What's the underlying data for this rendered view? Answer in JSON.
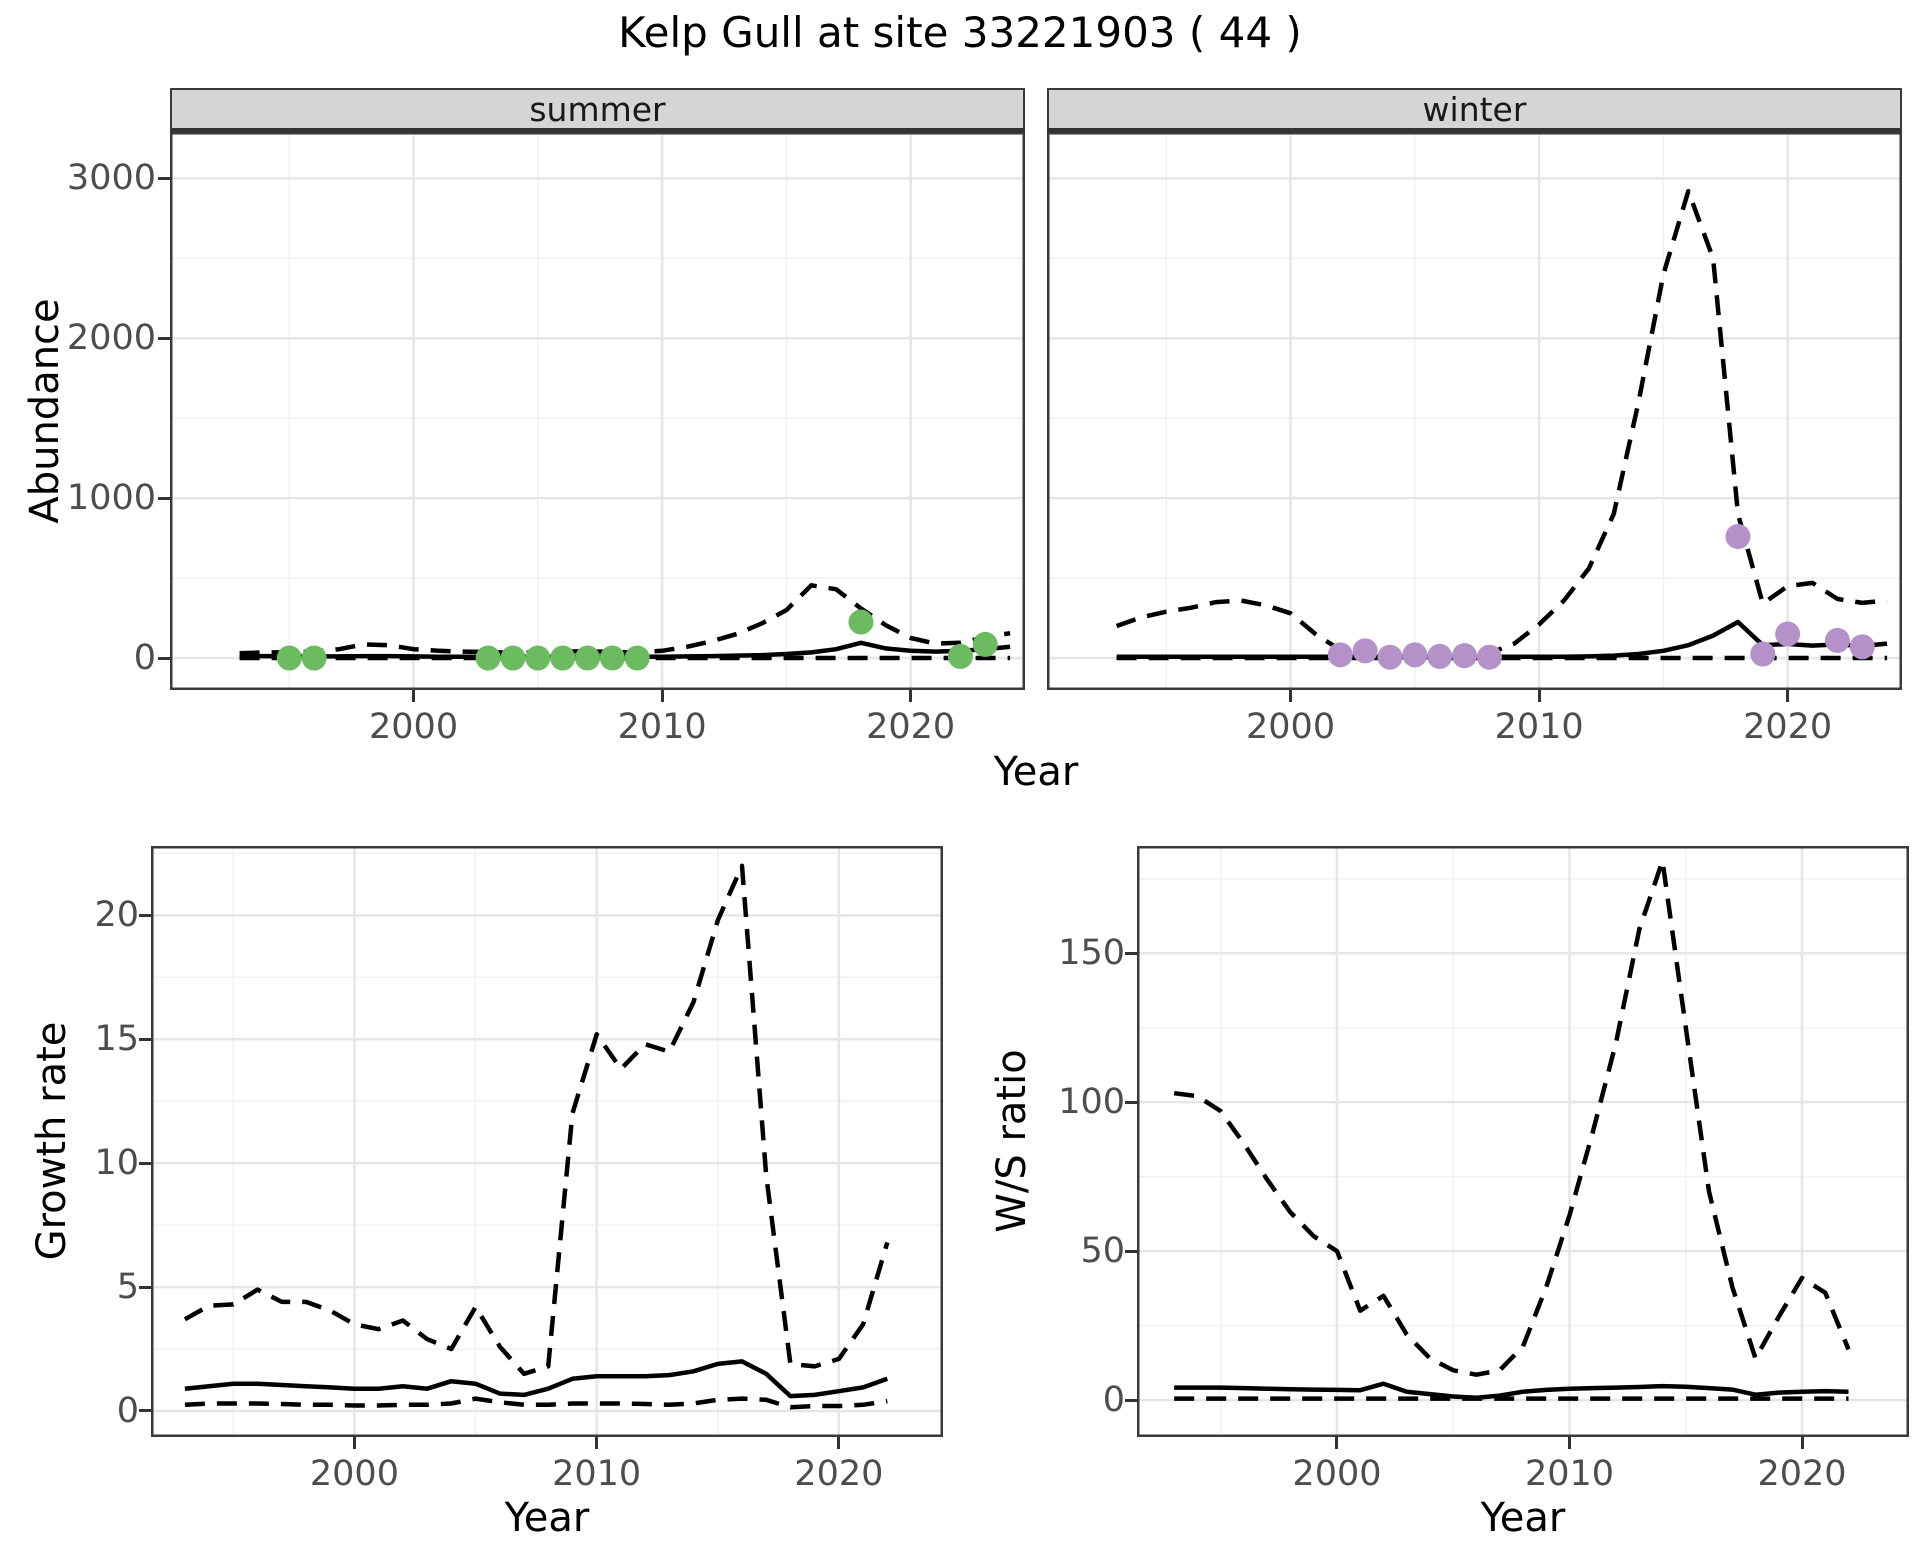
{
  "title": "Kelp Gull at site 33221903 ( 44 )",
  "colors": {
    "summer_points": "#6dbb61",
    "winter_points": "#b491c8",
    "line": "#000000",
    "strip_bg": "#d5d5d5",
    "grid_major": "#e6e6e6",
    "grid_minor": "#f2f2f2",
    "axis_text": "#4d4d4d"
  },
  "abundance": {
    "y_label": "Abundance",
    "x_label": "Year",
    "facets": [
      {
        "label": "summer"
      },
      {
        "label": "winter"
      }
    ]
  },
  "growth": {
    "y_label": "Growth rate",
    "x_label": "Year"
  },
  "ws": {
    "y_label": "W/S ratio",
    "x_label": "Year"
  },
  "chart_data": [
    {
      "id": "abundance_summer",
      "type": "line",
      "facet": "summer",
      "xlabel": "Year",
      "ylabel": "Abundance",
      "xlim": [
        1990.2,
        2024.6
      ],
      "ylim": [
        -200,
        3290
      ],
      "x_ticks": [
        2000,
        2010,
        2020
      ],
      "y_ticks": [
        0,
        1000,
        2000,
        3000
      ],
      "grid": true,
      "x": [
        1993,
        1994,
        1995,
        1996,
        1997,
        1998,
        1999,
        2000,
        2001,
        2002,
        2003,
        2004,
        2005,
        2006,
        2007,
        2008,
        2009,
        2010,
        2011,
        2012,
        2013,
        2014,
        2015,
        2016,
        2017,
        2018,
        2019,
        2020,
        2021,
        2022,
        2023,
        2024
      ],
      "series": [
        {
          "name": "median",
          "style": "solid",
          "values": [
            12,
            12,
            10,
            10,
            10,
            12,
            12,
            10,
            8,
            8,
            8,
            8,
            8,
            8,
            8,
            8,
            8,
            8,
            10,
            12,
            15,
            18,
            25,
            35,
            55,
            95,
            60,
            45,
            40,
            45,
            55,
            70
          ]
        },
        {
          "name": "upper_ci",
          "style": "dashed",
          "values": [
            30,
            35,
            35,
            40,
            55,
            85,
            80,
            55,
            45,
            40,
            38,
            32,
            35,
            40,
            42,
            38,
            35,
            45,
            70,
            105,
            150,
            215,
            300,
            455,
            430,
            310,
            205,
            125,
            90,
            95,
            130,
            155
          ]
        },
        {
          "name": "lower_ci",
          "style": "dashed",
          "values": [
            0,
            0,
            0,
            0,
            0,
            0,
            0,
            0,
            0,
            0,
            0,
            0,
            0,
            0,
            0,
            0,
            0,
            0,
            0,
            0,
            0,
            0,
            0,
            0,
            0,
            0,
            0,
            0,
            0,
            0,
            0,
            0
          ]
        }
      ],
      "points": {
        "color_key": "summer_points",
        "x": [
          1995,
          1996,
          2003,
          2004,
          2005,
          2006,
          2007,
          2008,
          2009,
          2018,
          2022,
          2023
        ],
        "y": [
          0,
          0,
          0,
          0,
          0,
          0,
          0,
          0,
          0,
          225,
          10,
          85
        ]
      }
    },
    {
      "id": "abundance_winter",
      "type": "line",
      "facet": "winter",
      "xlabel": "Year",
      "ylabel": "Abundance",
      "xlim": [
        1990.2,
        2024.6
      ],
      "ylim": [
        -200,
        3290
      ],
      "x_ticks": [
        2000,
        2010,
        2020
      ],
      "y_ticks": [
        0,
        1000,
        2000,
        3000
      ],
      "grid": true,
      "x": [
        1993,
        1994,
        1995,
        1996,
        1997,
        1998,
        1999,
        2000,
        2001,
        2002,
        2003,
        2004,
        2005,
        2006,
        2007,
        2008,
        2009,
        2010,
        2011,
        2012,
        2013,
        2014,
        2015,
        2016,
        2017,
        2018,
        2019,
        2020,
        2021,
        2022,
        2023,
        2024
      ],
      "series": [
        {
          "name": "median",
          "style": "solid",
          "values": [
            8,
            8,
            8,
            8,
            8,
            8,
            8,
            8,
            8,
            8,
            8,
            8,
            8,
            8,
            8,
            8,
            8,
            8,
            8,
            10,
            15,
            25,
            45,
            80,
            140,
            225,
            80,
            88,
            78,
            85,
            75,
            90
          ]
        },
        {
          "name": "upper_ci",
          "style": "dashed",
          "values": [
            200,
            255,
            290,
            315,
            350,
            360,
            330,
            280,
            150,
            50,
            15,
            8,
            5,
            5,
            5,
            30,
            90,
            210,
            360,
            560,
            900,
            1600,
            2400,
            2920,
            2500,
            900,
            340,
            450,
            470,
            370,
            345,
            360
          ]
        },
        {
          "name": "lower_ci",
          "style": "dashed",
          "values": [
            0,
            0,
            0,
            0,
            0,
            0,
            0,
            0,
            0,
            0,
            0,
            0,
            0,
            0,
            0,
            0,
            0,
            0,
            0,
            0,
            0,
            0,
            0,
            0,
            0,
            0,
            0,
            0,
            0,
            0,
            0,
            0
          ]
        }
      ],
      "points": {
        "color_key": "winter_points",
        "x": [
          2002,
          2003,
          2004,
          2005,
          2006,
          2007,
          2008,
          2018,
          2019,
          2020,
          2022,
          2023
        ],
        "y": [
          20,
          45,
          5,
          20,
          10,
          15,
          5,
          760,
          25,
          150,
          110,
          70
        ]
      }
    },
    {
      "id": "growth",
      "type": "line",
      "xlabel": "Year",
      "ylabel": "Growth rate",
      "xlim": [
        1991.6,
        2024.3
      ],
      "ylim": [
        -1.05,
        22.8
      ],
      "x_ticks": [
        2000,
        2010,
        2020
      ],
      "y_ticks": [
        0,
        5,
        10,
        15,
        20
      ],
      "grid": true,
      "x": [
        1993,
        1994,
        1995,
        1996,
        1997,
        1998,
        1999,
        2000,
        2001,
        2002,
        2003,
        2004,
        2005,
        2006,
        2007,
        2008,
        2009,
        2010,
        2011,
        2012,
        2013,
        2014,
        2015,
        2016,
        2017,
        2018,
        2019,
        2020,
        2021,
        2022
      ],
      "series": [
        {
          "name": "median",
          "style": "solid",
          "values": [
            0.9,
            1.0,
            1.1,
            1.1,
            1.05,
            1.0,
            0.95,
            0.9,
            0.9,
            1.0,
            0.9,
            1.2,
            1.1,
            0.7,
            0.65,
            0.9,
            1.3,
            1.4,
            1.4,
            1.4,
            1.45,
            1.6,
            1.9,
            2.0,
            1.5,
            0.6,
            0.65,
            0.8,
            0.95,
            1.3
          ]
        },
        {
          "name": "upper_ci",
          "style": "dashed",
          "values": [
            3.7,
            4.25,
            4.3,
            4.9,
            4.4,
            4.4,
            4.05,
            3.5,
            3.3,
            3.65,
            2.9,
            2.5,
            4.2,
            2.6,
            1.5,
            1.8,
            12,
            15.2,
            13.8,
            14.8,
            14.5,
            16.5,
            19.8,
            22,
            9.5,
            1.9,
            1.8,
            2.1,
            3.5,
            6.8
          ]
        },
        {
          "name": "lower_ci",
          "style": "dashed",
          "values": [
            0.25,
            0.3,
            0.3,
            0.3,
            0.28,
            0.25,
            0.25,
            0.22,
            0.22,
            0.25,
            0.25,
            0.3,
            0.5,
            0.35,
            0.25,
            0.25,
            0.3,
            0.3,
            0.3,
            0.28,
            0.25,
            0.3,
            0.45,
            0.5,
            0.45,
            0.15,
            0.2,
            0.2,
            0.25,
            0.4
          ]
        }
      ]
    },
    {
      "id": "ws",
      "type": "line",
      "xlabel": "Year",
      "ylabel": "W/S ratio",
      "xlim": [
        1991.4,
        2024.6
      ],
      "ylim": [
        -12.4,
        186
      ],
      "x_ticks": [
        2000,
        2010,
        2020
      ],
      "y_ticks": [
        0,
        50,
        100,
        150
      ],
      "grid": true,
      "x": [
        1993,
        1994,
        1995,
        1996,
        1997,
        1998,
        1999,
        2000,
        2001,
        2002,
        2003,
        2004,
        2005,
        2006,
        2007,
        2008,
        2009,
        2010,
        2011,
        2012,
        2013,
        2014,
        2015,
        2016,
        2017,
        2018,
        2019,
        2020,
        2021,
        2022
      ],
      "series": [
        {
          "name": "median",
          "style": "solid",
          "values": [
            4.2,
            4.2,
            4.2,
            4.0,
            3.8,
            3.6,
            3.5,
            3.4,
            3.3,
            5.5,
            2.8,
            2.0,
            1.2,
            0.8,
            1.5,
            2.8,
            3.4,
            3.8,
            4.0,
            4.2,
            4.4,
            4.7,
            4.5,
            4.0,
            3.5,
            1.8,
            2.5,
            2.8,
            3.0,
            2.8
          ]
        },
        {
          "name": "upper_ci",
          "style": "dashed",
          "values": [
            103,
            102,
            97,
            86,
            74,
            63,
            55,
            50,
            30,
            35,
            22,
            14,
            10,
            8.5,
            10,
            18,
            38,
            62,
            90,
            120,
            158,
            181,
            125,
            70,
            38,
            14,
            28,
            41,
            36,
            17
          ]
        },
        {
          "name": "lower_ci",
          "style": "dashed",
          "values": [
            0.5,
            0.5,
            0.5,
            0.5,
            0.5,
            0.5,
            0.5,
            0.5,
            0.5,
            0.5,
            0.5,
            0.5,
            0.5,
            0.5,
            0.5,
            0.5,
            0.5,
            0.5,
            0.5,
            0.5,
            0.5,
            0.5,
            0.5,
            0.5,
            0.5,
            0.5,
            0.5,
            0.5,
            0.5,
            0.5
          ]
        }
      ]
    }
  ]
}
